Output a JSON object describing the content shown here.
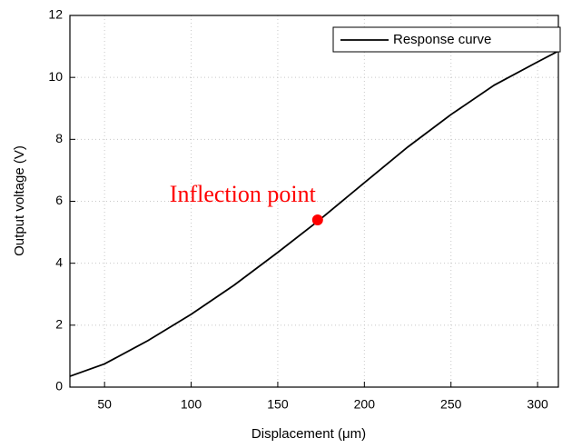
{
  "chart_data": {
    "type": "line",
    "xlabel": "Displacement (μm)",
    "ylabel": "Output voltage (V)",
    "xlim": [
      30,
      312
    ],
    "ylim": [
      0,
      12
    ],
    "xticks": [
      50,
      100,
      150,
      200,
      250,
      300
    ],
    "yticks": [
      0,
      2,
      4,
      6,
      8,
      10,
      12
    ],
    "grid": true,
    "legend": "upper right",
    "series": [
      {
        "name": "Response curve",
        "color": "#000000",
        "x": [
          30,
          50,
          75,
          100,
          125,
          150,
          173,
          200,
          225,
          250,
          275,
          300,
          312
        ],
        "values": [
          0.35,
          0.75,
          1.5,
          2.35,
          3.3,
          4.35,
          5.35,
          6.6,
          7.75,
          8.8,
          9.75,
          10.5,
          10.85
        ]
      }
    ],
    "annotation": {
      "text": "Inflection point",
      "x": 173,
      "y": 5.4,
      "color": "#ff0000"
    }
  }
}
